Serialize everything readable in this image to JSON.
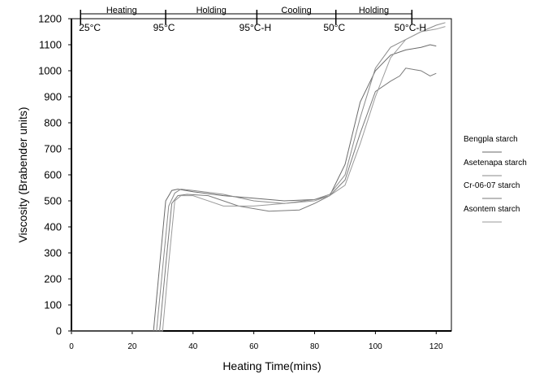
{
  "chart_data": {
    "type": "line",
    "title": "",
    "xlabel": "Heating Time(mins)",
    "ylabel": "Viscosity (Brabender units)",
    "xlim": [
      0,
      125
    ],
    "ylim": [
      0,
      1200
    ],
    "x_ticks": [
      0,
      20,
      40,
      60,
      80,
      100,
      120
    ],
    "y_ticks": [
      0,
      100,
      200,
      300,
      400,
      500,
      600,
      700,
      800,
      900,
      1000,
      1100,
      1200
    ],
    "grid": false,
    "legend_position": "right",
    "phases": [
      "Heating",
      "Holding",
      "Cooling",
      "Holding"
    ],
    "temperature_markers": [
      {
        "x": 3,
        "label": "25°C"
      },
      {
        "x": 31,
        "label": "95°C"
      },
      {
        "x": 61,
        "label": "95°C-H"
      },
      {
        "x": 87,
        "label": "50°C"
      },
      {
        "x": 112,
        "label": "50°C-H"
      }
    ],
    "phase_positions": [
      16.5,
      46,
      74,
      99.5
    ],
    "series": [
      {
        "name": "Bengpla starch",
        "x": [
          0,
          27,
          29,
          31,
          33,
          35,
          40,
          50,
          60,
          70,
          80,
          85,
          90,
          95,
          100,
          105,
          110,
          115,
          118,
          120
        ],
        "y": [
          0,
          0,
          250,
          500,
          540,
          545,
          535,
          520,
          510,
          500,
          505,
          520,
          640,
          880,
          1000,
          1060,
          1080,
          1090,
          1100,
          1095
        ]
      },
      {
        "name": "Asetenapa starch",
        "x": [
          0,
          28,
          30,
          32,
          34,
          36,
          40,
          50,
          60,
          70,
          80,
          85,
          90,
          95,
          100,
          105,
          110,
          115,
          120,
          123
        ],
        "y": [
          0,
          0,
          240,
          480,
          530,
          545,
          540,
          525,
          500,
          490,
          505,
          525,
          600,
          820,
          1010,
          1090,
          1120,
          1150,
          1175,
          1185
        ]
      },
      {
        "name": "Cr-06-07 starch",
        "x": [
          0,
          29,
          31,
          33,
          35,
          38,
          45,
          55,
          65,
          75,
          80,
          85,
          90,
          95,
          100,
          105,
          108,
          110,
          115,
          118,
          120
        ],
        "y": [
          0,
          0,
          250,
          490,
          520,
          525,
          520,
          480,
          460,
          465,
          490,
          520,
          580,
          760,
          920,
          960,
          980,
          1010,
          1000,
          980,
          990
        ]
      },
      {
        "name": "Asontem starch",
        "x": [
          0,
          30,
          32,
          34,
          36,
          40,
          50,
          60,
          70,
          80,
          85,
          90,
          95,
          100,
          105,
          110,
          115,
          120,
          123
        ],
        "y": [
          0,
          0,
          260,
          500,
          520,
          520,
          480,
          480,
          490,
          500,
          520,
          560,
          720,
          900,
          1050,
          1120,
          1150,
          1160,
          1170
        ]
      }
    ]
  }
}
